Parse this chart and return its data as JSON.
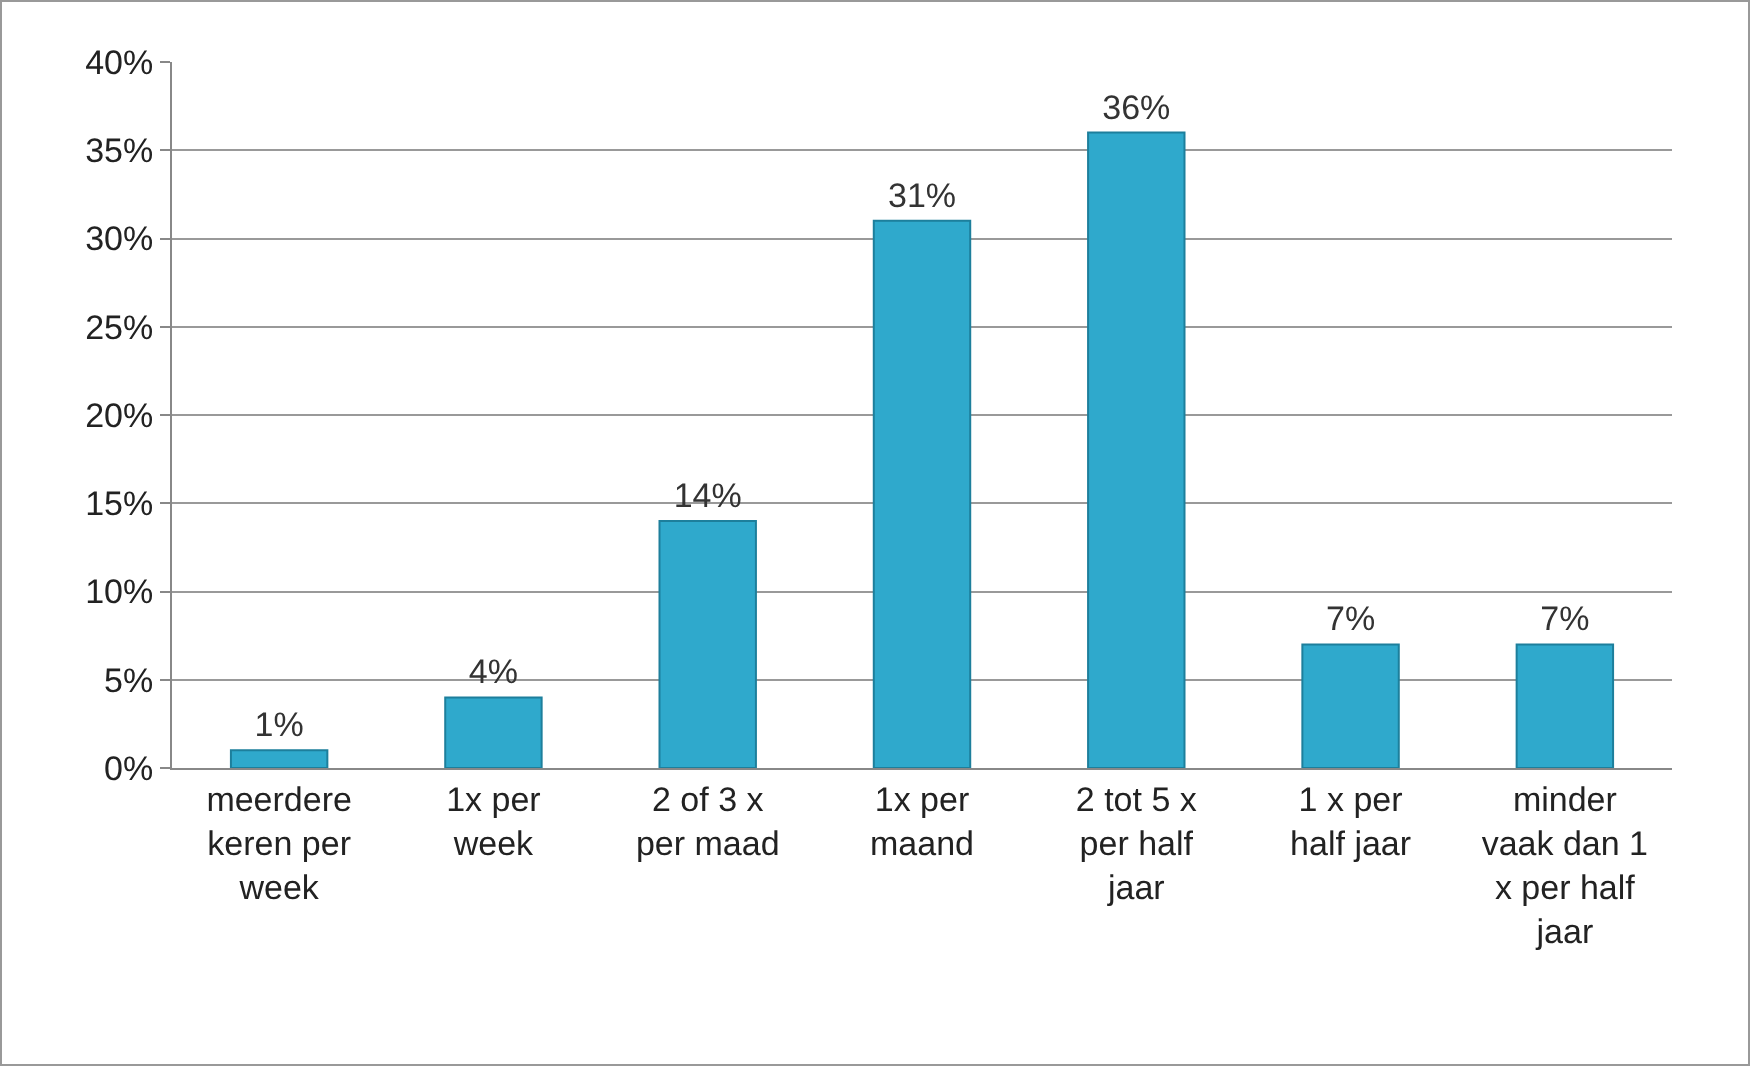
{
  "chart_data": {
    "type": "bar",
    "categories": [
      "meerdere keren per week",
      "1x per week",
      "2 of 3 x per maad",
      "1x per maand",
      "2 tot 5 x per half jaar",
      "1 x per half jaar",
      "minder vaak dan 1 x per half jaar"
    ],
    "values": [
      1,
      4,
      14,
      31,
      36,
      7,
      7
    ],
    "value_labels": [
      "1%",
      "4%",
      "14%",
      "31%",
      "36%",
      "7%",
      "7%"
    ],
    "color": "#2fa9cc",
    "ylim": [
      0,
      40
    ],
    "yticks": [
      {
        "value": 0,
        "label": "0%"
      },
      {
        "value": 5,
        "label": "5%"
      },
      {
        "value": 10,
        "label": "10%"
      },
      {
        "value": 15,
        "label": "15%"
      },
      {
        "value": 20,
        "label": "20%"
      },
      {
        "value": 25,
        "label": "25%"
      },
      {
        "value": 30,
        "label": "30%"
      },
      {
        "value": 35,
        "label": "35%"
      },
      {
        "value": 40,
        "label": "40%"
      }
    ],
    "grid": "y"
  }
}
